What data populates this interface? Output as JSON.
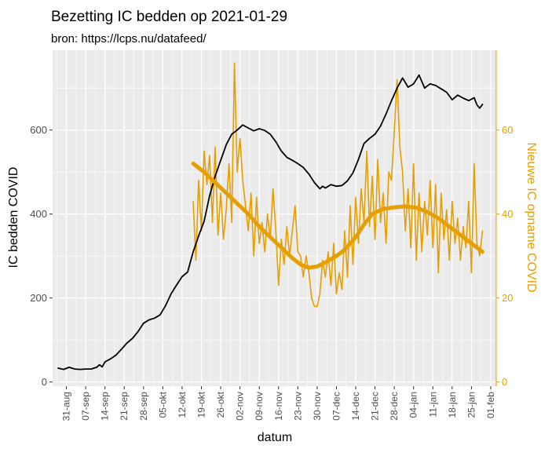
{
  "colors": {
    "panel": "#EBEBEB",
    "grid": "#FFFFFF",
    "beds": "#000000",
    "admissions": "#E69F00",
    "left_tick": "#4D4D4D"
  },
  "chart_data": {
    "type": "line",
    "title": "Bezetting IC bedden op 2021-01-29",
    "subtitle": "bron: https://lcps.nu/datafeed/",
    "xlabel": "datum",
    "ylabel": "IC bedden COVID",
    "ylabel_right": "Nieuwe IC opname COVID",
    "xlim": [
      "2020-08-26",
      "2021-02-03"
    ],
    "ylim": [
      -10,
      790
    ],
    "ylim_right": [
      -1,
      79
    ],
    "yticks": [
      0,
      200,
      400,
      600
    ],
    "yticks_right": [
      0,
      20,
      40,
      60
    ],
    "xticks": [
      {
        "date": "2020-08-31",
        "label": "31-aug"
      },
      {
        "date": "2020-09-07",
        "label": "07-sep"
      },
      {
        "date": "2020-09-14",
        "label": "14-sep"
      },
      {
        "date": "2020-09-21",
        "label": "21-sep"
      },
      {
        "date": "2020-09-28",
        "label": "28-sep"
      },
      {
        "date": "2020-10-05",
        "label": "05-okt"
      },
      {
        "date": "2020-10-12",
        "label": "12-okt"
      },
      {
        "date": "2020-10-19",
        "label": "19-okt"
      },
      {
        "date": "2020-10-26",
        "label": "26-okt"
      },
      {
        "date": "2020-11-02",
        "label": "02-nov"
      },
      {
        "date": "2020-11-09",
        "label": "09-nov"
      },
      {
        "date": "2020-11-16",
        "label": "16-nov"
      },
      {
        "date": "2020-11-23",
        "label": "23-nov"
      },
      {
        "date": "2020-11-30",
        "label": "30-nov"
      },
      {
        "date": "2020-12-07",
        "label": "07-dec"
      },
      {
        "date": "2020-12-14",
        "label": "14-dec"
      },
      {
        "date": "2020-12-21",
        "label": "21-dec"
      },
      {
        "date": "2020-12-28",
        "label": "28-dec"
      },
      {
        "date": "2021-01-04",
        "label": "04-jan"
      },
      {
        "date": "2021-01-11",
        "label": "11-jan"
      },
      {
        "date": "2021-01-18",
        "label": "18-jan"
      },
      {
        "date": "2021-01-25",
        "label": "25-jan"
      },
      {
        "date": "2021-02-01",
        "label": "01-feb"
      }
    ],
    "grid": true,
    "legend": "none",
    "series": [
      {
        "axis": "left",
        "style": "line",
        "points": [
          [
            "2020-08-28",
            33
          ],
          [
            "2020-08-30",
            30
          ],
          [
            "2020-09-01",
            35
          ],
          [
            "2020-09-03",
            31
          ],
          [
            "2020-09-05",
            30
          ],
          [
            "2020-09-07",
            31
          ],
          [
            "2020-09-09",
            31
          ],
          [
            "2020-09-11",
            35
          ],
          [
            "2020-09-12",
            41
          ],
          [
            "2020-09-13",
            36
          ],
          [
            "2020-09-14",
            48
          ],
          [
            "2020-09-16",
            55
          ],
          [
            "2020-09-18",
            64
          ],
          [
            "2020-09-20",
            78
          ],
          [
            "2020-09-22",
            93
          ],
          [
            "2020-09-24",
            104
          ],
          [
            "2020-09-26",
            120
          ],
          [
            "2020-09-28",
            140
          ],
          [
            "2020-09-30",
            148
          ],
          [
            "2020-10-02",
            152
          ],
          [
            "2020-10-04",
            160
          ],
          [
            "2020-10-06",
            182
          ],
          [
            "2020-10-08",
            210
          ],
          [
            "2020-10-10",
            231
          ],
          [
            "2020-10-12",
            251
          ],
          [
            "2020-10-14",
            262
          ],
          [
            "2020-10-16",
            310
          ],
          [
            "2020-10-18",
            348
          ],
          [
            "2020-10-20",
            383
          ],
          [
            "2020-10-22",
            444
          ],
          [
            "2020-10-24",
            490
          ],
          [
            "2020-10-26",
            528
          ],
          [
            "2020-10-28",
            565
          ],
          [
            "2020-10-30",
            590
          ],
          [
            "2020-11-01",
            600
          ],
          [
            "2020-11-03",
            612
          ],
          [
            "2020-11-05",
            605
          ],
          [
            "2020-11-07",
            598
          ],
          [
            "2020-11-09",
            603
          ],
          [
            "2020-11-11",
            599
          ],
          [
            "2020-11-13",
            590
          ],
          [
            "2020-11-15",
            572
          ],
          [
            "2020-11-17",
            550
          ],
          [
            "2020-11-19",
            535
          ],
          [
            "2020-11-21",
            528
          ],
          [
            "2020-11-23",
            520
          ],
          [
            "2020-11-25",
            511
          ],
          [
            "2020-11-27",
            495
          ],
          [
            "2020-11-29",
            475
          ],
          [
            "2020-12-01",
            460
          ],
          [
            "2020-12-02",
            466
          ],
          [
            "2020-12-03",
            462
          ],
          [
            "2020-12-05",
            470
          ],
          [
            "2020-12-07",
            466
          ],
          [
            "2020-12-09",
            468
          ],
          [
            "2020-12-11",
            479
          ],
          [
            "2020-12-13",
            498
          ],
          [
            "2020-12-15",
            530
          ],
          [
            "2020-12-17",
            568
          ],
          [
            "2020-12-19",
            580
          ],
          [
            "2020-12-21",
            590
          ],
          [
            "2020-12-23",
            609
          ],
          [
            "2020-12-25",
            638
          ],
          [
            "2020-12-27",
            670
          ],
          [
            "2020-12-29",
            700
          ],
          [
            "2020-12-31",
            724
          ],
          [
            "2021-01-02",
            702
          ],
          [
            "2021-01-04",
            710
          ],
          [
            "2021-01-06",
            731
          ],
          [
            "2021-01-08",
            700
          ],
          [
            "2021-01-10",
            710
          ],
          [
            "2021-01-12",
            706
          ],
          [
            "2021-01-14",
            698
          ],
          [
            "2021-01-16",
            690
          ],
          [
            "2021-01-18",
            672
          ],
          [
            "2021-01-20",
            683
          ],
          [
            "2021-01-22",
            676
          ],
          [
            "2021-01-24",
            670
          ],
          [
            "2021-01-26",
            677
          ],
          [
            "2021-01-27",
            660
          ],
          [
            "2021-01-28",
            652
          ],
          [
            "2021-01-29",
            661
          ]
        ]
      },
      {
        "axis": "right",
        "style": "line",
        "points": [
          [
            "2020-10-16",
            43
          ],
          [
            "2020-10-17",
            29
          ],
          [
            "2020-10-18",
            48
          ],
          [
            "2020-10-19",
            36
          ],
          [
            "2020-10-20",
            55
          ],
          [
            "2020-10-21",
            47
          ],
          [
            "2020-10-22",
            54
          ],
          [
            "2020-10-23",
            38
          ],
          [
            "2020-10-24",
            56
          ],
          [
            "2020-10-25",
            35
          ],
          [
            "2020-10-26",
            45
          ],
          [
            "2020-10-27",
            34
          ],
          [
            "2020-10-28",
            41
          ],
          [
            "2020-10-29",
            52
          ],
          [
            "2020-10-30",
            38
          ],
          [
            "2020-10-31",
            76
          ],
          [
            "2020-11-01",
            50
          ],
          [
            "2020-11-02",
            58
          ],
          [
            "2020-11-03",
            48
          ],
          [
            "2020-11-04",
            42
          ],
          [
            "2020-11-05",
            36
          ],
          [
            "2020-11-06",
            45
          ],
          [
            "2020-11-07",
            30
          ],
          [
            "2020-11-08",
            44
          ],
          [
            "2020-11-09",
            33
          ],
          [
            "2020-11-10",
            38
          ],
          [
            "2020-11-11",
            31
          ],
          [
            "2020-11-12",
            40
          ],
          [
            "2020-11-13",
            34
          ],
          [
            "2020-11-14",
            46
          ],
          [
            "2020-11-15",
            36
          ],
          [
            "2020-11-16",
            23
          ],
          [
            "2020-11-17",
            34
          ],
          [
            "2020-11-18",
            28
          ],
          [
            "2020-11-19",
            37
          ],
          [
            "2020-11-20",
            30
          ],
          [
            "2020-11-21",
            36
          ],
          [
            "2020-11-22",
            42
          ],
          [
            "2020-11-23",
            31
          ],
          [
            "2020-11-24",
            30
          ],
          [
            "2020-11-25",
            25
          ],
          [
            "2020-11-26",
            30
          ],
          [
            "2020-11-27",
            26
          ],
          [
            "2020-11-28",
            20
          ],
          [
            "2020-11-29",
            18
          ],
          [
            "2020-11-30",
            18
          ],
          [
            "2020-12-01",
            21
          ],
          [
            "2020-12-02",
            29
          ],
          [
            "2020-12-03",
            25
          ],
          [
            "2020-12-04",
            31
          ],
          [
            "2020-12-05",
            23
          ],
          [
            "2020-12-06",
            33
          ],
          [
            "2020-12-07",
            21
          ],
          [
            "2020-12-08",
            26
          ],
          [
            "2020-12-09",
            22
          ],
          [
            "2020-12-10",
            36
          ],
          [
            "2020-12-11",
            25
          ],
          [
            "2020-12-12",
            42
          ],
          [
            "2020-12-13",
            28
          ],
          [
            "2020-12-14",
            44
          ],
          [
            "2020-12-15",
            33
          ],
          [
            "2020-12-16",
            46
          ],
          [
            "2020-12-17",
            38
          ],
          [
            "2020-12-18",
            55
          ],
          [
            "2020-12-19",
            37
          ],
          [
            "2020-12-20",
            49
          ],
          [
            "2020-12-21",
            34
          ],
          [
            "2020-12-22",
            53
          ],
          [
            "2020-12-23",
            38
          ],
          [
            "2020-12-24",
            45
          ],
          [
            "2020-12-25",
            33
          ],
          [
            "2020-12-26",
            50
          ],
          [
            "2020-12-27",
            48
          ],
          [
            "2020-12-28",
            60
          ],
          [
            "2020-12-29",
            72
          ],
          [
            "2020-12-30",
            56
          ],
          [
            "2020-12-31",
            50
          ],
          [
            "2021-01-01",
            36
          ],
          [
            "2021-01-02",
            46
          ],
          [
            "2021-01-03",
            32
          ],
          [
            "2021-01-04",
            52
          ],
          [
            "2021-01-05",
            29
          ],
          [
            "2021-01-06",
            45
          ],
          [
            "2021-01-07",
            31
          ],
          [
            "2021-01-08",
            43
          ],
          [
            "2021-01-09",
            35
          ],
          [
            "2021-01-10",
            48
          ],
          [
            "2021-01-11",
            32
          ],
          [
            "2021-01-12",
            47
          ],
          [
            "2021-01-13",
            26
          ],
          [
            "2021-01-14",
            45
          ],
          [
            "2021-01-15",
            34
          ],
          [
            "2021-01-16",
            41
          ],
          [
            "2021-01-17",
            29
          ],
          [
            "2021-01-18",
            43
          ],
          [
            "2021-01-19",
            33
          ],
          [
            "2021-01-20",
            39
          ],
          [
            "2021-01-21",
            29
          ],
          [
            "2021-01-22",
            37
          ],
          [
            "2021-01-23",
            32
          ],
          [
            "2021-01-24",
            43
          ],
          [
            "2021-01-25",
            26
          ],
          [
            "2021-01-26",
            52
          ],
          [
            "2021-01-27",
            33
          ],
          [
            "2021-01-28",
            30
          ],
          [
            "2021-01-29",
            36
          ]
        ]
      },
      {
        "axis": "right",
        "style": "smooth",
        "points": [
          [
            "2020-10-16",
            52
          ],
          [
            "2020-10-20",
            50
          ],
          [
            "2020-10-24",
            47.5
          ],
          [
            "2020-10-28",
            45
          ],
          [
            "2020-11-01",
            42.5
          ],
          [
            "2020-11-05",
            40
          ],
          [
            "2020-11-09",
            37
          ],
          [
            "2020-11-13",
            34.5
          ],
          [
            "2020-11-17",
            32
          ],
          [
            "2020-11-21",
            29.5
          ],
          [
            "2020-11-24",
            28
          ],
          [
            "2020-11-27",
            27.2
          ],
          [
            "2020-11-30",
            27.5
          ],
          [
            "2020-12-03",
            28.5
          ],
          [
            "2020-12-07",
            30
          ],
          [
            "2020-12-10",
            31.5
          ],
          [
            "2020-12-14",
            34.5
          ],
          [
            "2020-12-17",
            37.5
          ],
          [
            "2020-12-20",
            40
          ],
          [
            "2020-12-24",
            41.2
          ],
          [
            "2020-12-28",
            41.6
          ],
          [
            "2021-01-01",
            41.8
          ],
          [
            "2021-01-05",
            41.5
          ],
          [
            "2021-01-09",
            40.5
          ],
          [
            "2021-01-13",
            39
          ],
          [
            "2021-01-17",
            37
          ],
          [
            "2021-01-21",
            35
          ],
          [
            "2021-01-25",
            33
          ],
          [
            "2021-01-29",
            31
          ]
        ]
      }
    ]
  }
}
